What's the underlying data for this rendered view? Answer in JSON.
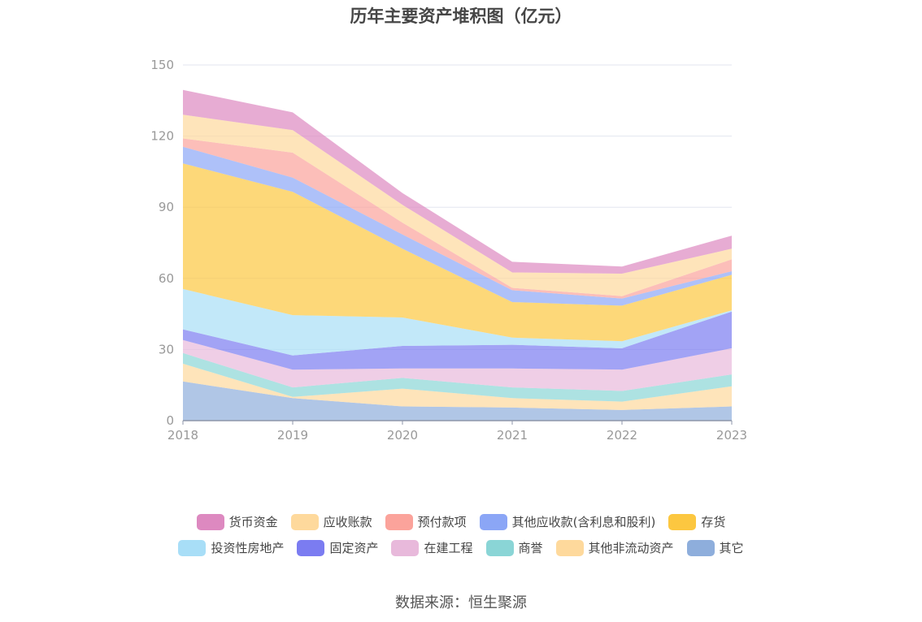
{
  "chart_data": {
    "type": "area",
    "stacked": true,
    "title": "历年主要资产堆积图（亿元）",
    "source": "数据来源：恒生聚源",
    "x": [
      "2018",
      "2019",
      "2020",
      "2021",
      "2022",
      "2023"
    ],
    "yticks": [
      "0",
      "30",
      "60",
      "90",
      "120",
      "150"
    ],
    "ylim": [
      0,
      150
    ],
    "legend_position": "bottom",
    "series": [
      {
        "name": "其它",
        "color": "#8eaedc",
        "values": [
          16.5,
          9.5,
          6.0,
          5.5,
          4.5,
          6.0
        ]
      },
      {
        "name": "其他非流动资产",
        "color": "#fed99c",
        "values": [
          7.5,
          0.5,
          7.5,
          4.0,
          3.5,
          8.5
        ]
      },
      {
        "name": "商誉",
        "color": "#8ad5d6",
        "values": [
          4.5,
          4.0,
          4.5,
          4.5,
          4.5,
          5.0
        ]
      },
      {
        "name": "在建工程",
        "color": "#e8b9db",
        "values": [
          5.5,
          7.5,
          4.0,
          8.0,
          9.0,
          11.0
        ]
      },
      {
        "name": "固定资产",
        "color": "#7b7cf1",
        "values": [
          4.5,
          6.0,
          9.5,
          10.0,
          9.0,
          15.5
        ]
      },
      {
        "name": "投资性房地产",
        "color": "#a8def7",
        "values": [
          17.0,
          17.0,
          12.0,
          3.0,
          3.0,
          0.5
        ]
      },
      {
        "name": "存货",
        "color": "#fcc740",
        "values": [
          53.0,
          52.0,
          29.0,
          15.0,
          15.0,
          15.0
        ]
      },
      {
        "name": "其他应收款(含利息和股利)",
        "color": "#8ba6f6",
        "values": [
          7.0,
          6.0,
          6.0,
          5.0,
          3.0,
          1.5
        ]
      },
      {
        "name": "预付款项",
        "color": "#fba39b",
        "values": [
          3.5,
          10.5,
          5.0,
          1.0,
          1.0,
          5.0
        ]
      },
      {
        "name": "应收账款",
        "color": "#fed99c",
        "values": [
          10.0,
          9.5,
          7.5,
          6.5,
          9.5,
          4.5
        ]
      },
      {
        "name": "货币资金",
        "color": "#dd89c0",
        "values": [
          10.5,
          7.5,
          5.0,
          4.5,
          3.0,
          5.5
        ]
      }
    ]
  },
  "legend_rows": [
    [
      "货币资金",
      "应收账款",
      "预付款项",
      "其他应收款(含利息和股利)",
      "存货"
    ],
    [
      "投资性房地产",
      "固定资产",
      "在建工程",
      "商誉",
      "其他非流动资产",
      "其它"
    ]
  ]
}
